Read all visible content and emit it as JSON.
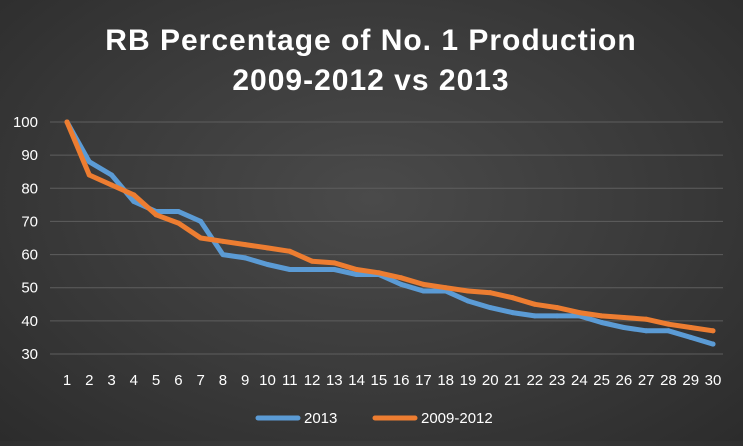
{
  "chart_data": {
    "type": "line",
    "title_line1": "RB Percentage of No. 1 Production",
    "title_line2": "2009-2012 vs 2013",
    "xlabel": "",
    "ylabel": "",
    "x": [
      1,
      2,
      3,
      4,
      5,
      6,
      7,
      8,
      9,
      10,
      11,
      12,
      13,
      14,
      15,
      16,
      17,
      18,
      19,
      20,
      21,
      22,
      23,
      24,
      25,
      26,
      27,
      28,
      29,
      30
    ],
    "x_ticks": [
      "1",
      "2",
      "3",
      "4",
      "5",
      "6",
      "7",
      "8",
      "9",
      "10",
      "11",
      "12",
      "13",
      "14",
      "15",
      "16",
      "17",
      "18",
      "19",
      "20",
      "21",
      "22",
      "23",
      "24",
      "25",
      "26",
      "27",
      "28",
      "29",
      "30"
    ],
    "ylim": [
      30,
      100
    ],
    "y_ticks": [
      "30",
      "40",
      "50",
      "60",
      "70",
      "80",
      "90",
      "100"
    ],
    "grid": "horizontal",
    "legend_position": "bottom",
    "series": [
      {
        "name": "2013",
        "color": "#5b9bd5",
        "values": [
          100,
          88,
          84,
          76,
          73,
          73,
          70,
          60,
          59,
          57,
          55.5,
          55.5,
          55.5,
          54,
          54,
          51,
          49,
          49,
          46,
          44,
          42.5,
          41.5,
          41.5,
          41.5,
          39.5,
          38,
          37,
          37,
          35,
          33
        ]
      },
      {
        "name": "2009-2012",
        "color": "#ed7d31",
        "values": [
          100,
          84,
          81,
          78,
          72,
          69.5,
          65,
          64,
          63,
          62,
          61,
          58,
          57.5,
          55.5,
          54.5,
          53,
          51,
          50,
          49,
          48.5,
          47,
          45,
          44,
          42.5,
          41.5,
          41,
          40.5,
          39,
          38,
          37
        ]
      }
    ]
  }
}
